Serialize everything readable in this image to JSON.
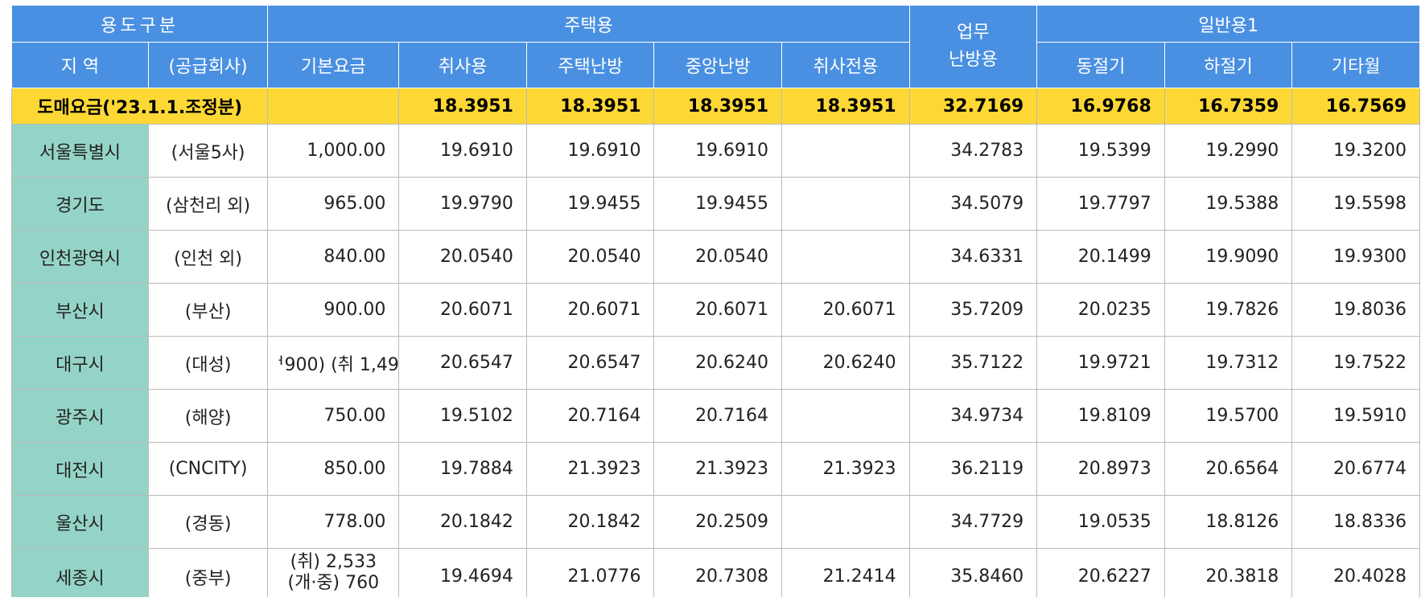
{
  "header": {
    "usage_division": "용도구분",
    "residential_group": "주택용",
    "work_heating": [
      "업무",
      "난방용"
    ],
    "general_group": "일반용1",
    "region": "지 역",
    "supplier": "(공급회사)",
    "columns": [
      "기본요금",
      "취사용",
      "주택난방",
      "중앙난방",
      "취사전용",
      "동절기",
      "하절기",
      "기타월"
    ]
  },
  "wholesale": {
    "label": "도매요금('23.1.1.조정분)",
    "values": [
      "",
      "18.3951",
      "18.3951",
      "18.3951",
      "18.3951",
      "32.7169",
      "16.9768",
      "16.7359",
      "16.7569"
    ]
  },
  "rows": [
    {
      "region": "서울특별시",
      "supplier": "(서울5사)",
      "values": [
        "1,000.00",
        "19.6910",
        "19.6910",
        "19.6910",
        "",
        "34.2783",
        "19.5399",
        "19.2990",
        "19.3200"
      ]
    },
    {
      "region": "경기도",
      "supplier": "(삼천리 외)",
      "values": [
        "965.00",
        "19.9790",
        "19.9455",
        "19.9455",
        "",
        "34.5079",
        "19.7797",
        "19.5388",
        "19.5598"
      ]
    },
    {
      "region": "인천광역시",
      "supplier": "(인천 외)",
      "values": [
        "840.00",
        "20.0540",
        "20.0540",
        "20.0540",
        "",
        "34.6331",
        "20.1499",
        "19.9090",
        "19.9300"
      ]
    },
    {
      "region": "부산시",
      "supplier": "(부산)",
      "values": [
        "900.00",
        "20.6071",
        "20.6071",
        "20.6071",
        "20.6071",
        "35.7209",
        "20.0235",
        "19.7826",
        "19.8036"
      ]
    },
    {
      "region": "대구시",
      "supplier": "(대성)",
      "values": [
        "ᅥ900) (취 1,49",
        "20.6547",
        "20.6547",
        "20.6240",
        "20.6240",
        "35.7122",
        "19.9721",
        "19.7312",
        "19.7522"
      ]
    },
    {
      "region": "광주시",
      "supplier": "(해양)",
      "values": [
        "750.00",
        "19.5102",
        "20.7164",
        "20.7164",
        "",
        "34.9734",
        "19.8109",
        "19.5700",
        "19.5910"
      ]
    },
    {
      "region": "대전시",
      "supplier": "(CNCITY)",
      "values": [
        "850.00",
        "19.7884",
        "21.3923",
        "21.3923",
        "21.3923",
        "36.2119",
        "20.8973",
        "20.6564",
        "20.6774"
      ]
    },
    {
      "region": "울산시",
      "supplier": "(경동)",
      "values": [
        "778.00",
        "20.1842",
        "20.1842",
        "20.2509",
        "",
        "34.7729",
        "19.0535",
        "18.8126",
        "18.8336"
      ]
    },
    {
      "region": "세종시",
      "supplier": "(중부)",
      "values": [
        "",
        "19.4694",
        "21.0776",
        "20.7308",
        "21.2414",
        "35.8460",
        "20.6227",
        "20.3818",
        "20.4028"
      ],
      "base_lines": [
        "(취) 2,533",
        "(개·중) 760"
      ]
    }
  ],
  "colors": {
    "header_bg": "#4a90e2",
    "wholesale_bg": "#fdd835",
    "region_bg": "#94d4c7",
    "grid": "#b9b9b9"
  }
}
